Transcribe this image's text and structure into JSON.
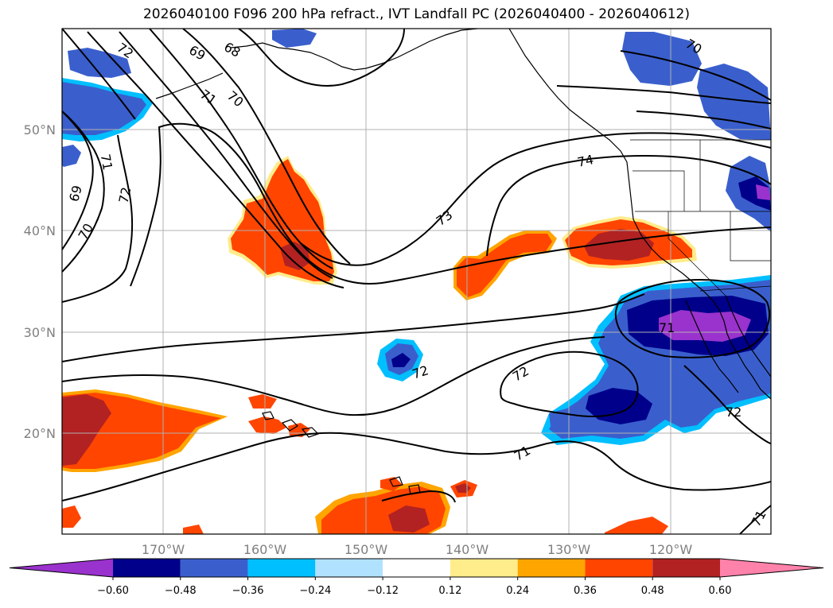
{
  "title": "2026040100 F096 200 hPa refract., IVT Landfall PC (2026040400 - 2026040612)",
  "map": {
    "lon_labels": [
      "170°W",
      "160°W",
      "150°W",
      "140°W",
      "130°W",
      "120°W"
    ],
    "lat_labels": [
      "50°N",
      "40°N",
      "30°N",
      "20°N"
    ],
    "contour_labels": [
      "72",
      "69",
      "68",
      "70",
      "71",
      "71",
      "72",
      "69",
      "70",
      "74",
      "73",
      "70",
      "71",
      "72",
      "72",
      "71",
      "72",
      "71"
    ]
  },
  "colorbar": {
    "ticks": [
      "−0.60",
      "−0.48",
      "−0.36",
      "−0.24",
      "−0.12",
      "0.12",
      "0.24",
      "0.36",
      "0.48",
      "0.60"
    ],
    "colors": [
      "#9a32cd",
      "#00008b",
      "#3a5fcd",
      "#00bfff",
      "#b0e2ff",
      "#ffffff",
      "#ffec8b",
      "#ffa500",
      "#ff4500",
      "#b22222",
      "#ff82ab"
    ]
  }
}
